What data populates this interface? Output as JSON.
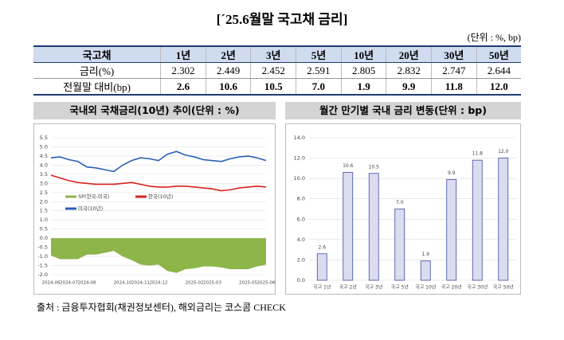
{
  "title": "[´25.6월말 국고채 금리]",
  "unit": "(단위 : %, bp)",
  "table": {
    "header": [
      "국고채",
      "1년",
      "2년",
      "3년",
      "5년",
      "10년",
      "20년",
      "30년",
      "50년"
    ],
    "rows": [
      [
        "금리(%)",
        "2.302",
        "2.449",
        "2.452",
        "2.591",
        "2.805",
        "2.832",
        "2.747",
        "2.644"
      ],
      [
        "전월말 대비(bp)",
        "2.6",
        "10.6",
        "10.5",
        "7.0",
        "1.9",
        "9.9",
        "11.8",
        "12.0"
      ]
    ]
  },
  "source": "출처 : 금융투자협회(채권정보센터), 해외금리는 코스콤 CHECK",
  "chart_data": [
    {
      "type": "line",
      "title": "국내외 국채금리(10년) 추이(단위 : %)",
      "x": [
        "2024-06",
        null,
        "2024-07",
        null,
        "2024-08",
        null,
        null,
        null,
        "2024-10",
        null,
        "2024-11",
        null,
        "2024-12",
        null,
        null,
        null,
        "2025-02",
        null,
        "2025-03",
        null,
        null,
        null,
        "2025-05",
        null,
        "2025-06"
      ],
      "series": [
        {
          "name": "SP(한국-미국)",
          "type": "area",
          "color": "#8db54a",
          "values": [
            -0.95,
            -1.15,
            -1.15,
            -1.15,
            -0.9,
            -0.9,
            -0.8,
            -0.7,
            -1.0,
            -1.2,
            -1.45,
            -1.5,
            -1.45,
            -1.8,
            -1.9,
            -1.7,
            -1.65,
            -1.55,
            -1.55,
            -1.6,
            -1.7,
            -1.7,
            -1.7,
            -1.55,
            -1.45
          ]
        },
        {
          "name": "한국(10년)",
          "type": "line",
          "color": "#d9221c",
          "values": [
            3.45,
            3.3,
            3.15,
            3.05,
            3.0,
            2.95,
            2.95,
            2.95,
            3.0,
            3.05,
            2.95,
            2.85,
            2.8,
            2.8,
            2.85,
            2.85,
            2.8,
            2.75,
            2.7,
            2.6,
            2.65,
            2.75,
            2.8,
            2.85,
            2.8
          ]
        },
        {
          "name": "미국(10년)",
          "type": "line",
          "color": "#2a5fb8",
          "values": [
            4.4,
            4.45,
            4.3,
            4.2,
            3.9,
            3.85,
            3.75,
            3.65,
            4.0,
            4.25,
            4.4,
            4.35,
            4.25,
            4.6,
            4.75,
            4.55,
            4.45,
            4.3,
            4.25,
            4.2,
            4.35,
            4.45,
            4.5,
            4.4,
            4.25
          ]
        }
      ],
      "ylim": [
        -2.0,
        5.5
      ],
      "yticks": [
        {
          "value": -2.0,
          "label": "-2.0"
        },
        {
          "value": -1.5,
          "label": "-1.5"
        },
        {
          "value": -1.0,
          "label": "-1.0"
        },
        {
          "value": -0.5,
          "label": "-0.5"
        },
        {
          "value": 0,
          "label": "0.0"
        },
        {
          "value": 0.5,
          "label": "0.5"
        },
        {
          "value": 1.0,
          "label": "1.0"
        },
        {
          "value": 1.5,
          "label": "1.5"
        },
        {
          "value": 2.0,
          "label": "2.0"
        },
        {
          "value": 2.5,
          "label": "2.5"
        },
        {
          "value": 3.0,
          "label": "3.0"
        },
        {
          "value": 3.5,
          "label": "3.5"
        },
        {
          "value": 4.0,
          "label": "4.0"
        },
        {
          "value": 4.5,
          "label": "4.5"
        },
        {
          "value": 5.0,
          "label": "5.0"
        },
        {
          "value": 5.5,
          "label": "5.5"
        }
      ],
      "grid": true
    },
    {
      "type": "bar",
      "title": "월간 만기별 국내 금리 변동(단위 : bp)",
      "categories": [
        "국고 1년",
        "국고 2년",
        "국고 3년",
        "국고 5년",
        "국고 10년",
        "국고 20년",
        "국고 30년",
        "국고 50년"
      ],
      "values": [
        2.6,
        10.6,
        10.5,
        7.0,
        1.9,
        9.9,
        11.8,
        12.0
      ],
      "value_labels": [
        "2.6",
        "10.6",
        "10.5",
        "7.0",
        "1.9",
        "9.9",
        "11.8",
        "12.0"
      ],
      "color": "#dcdcf0",
      "edge": "#3b4aa0",
      "ylim": [
        0,
        14
      ],
      "yticks": [
        {
          "value": 0,
          "label": "0.0"
        },
        {
          "value": 2,
          "label": "2.0"
        },
        {
          "value": 4,
          "label": "4.0"
        },
        {
          "value": 6,
          "label": "6.0"
        },
        {
          "value": 8,
          "label": "8.0"
        },
        {
          "value": 10,
          "label": "10.0"
        },
        {
          "value": 12,
          "label": "12.0"
        },
        {
          "value": 14,
          "label": "14.0"
        }
      ],
      "grid": true
    }
  ]
}
